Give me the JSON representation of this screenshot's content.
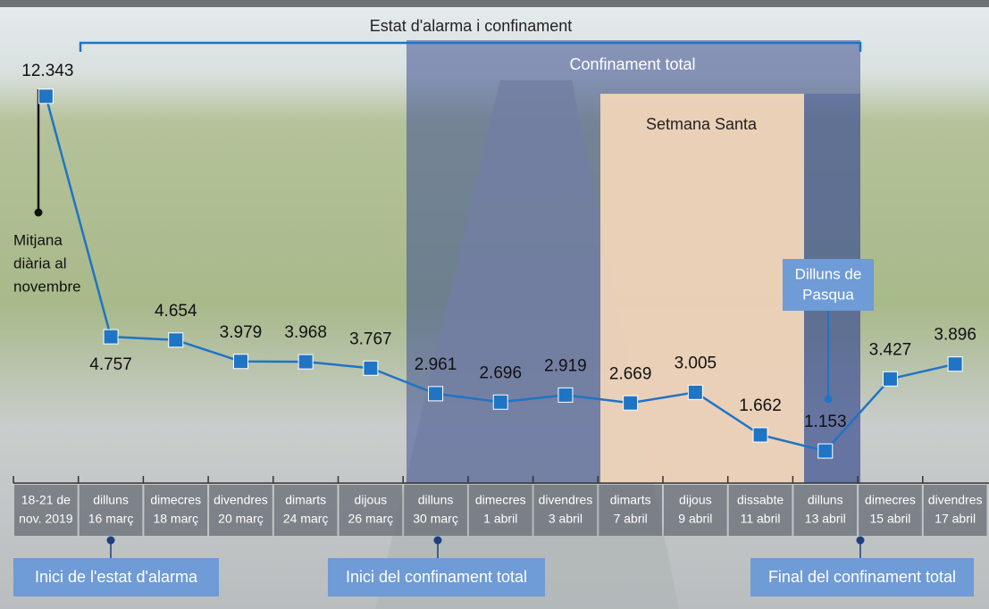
{
  "chart_data": {
    "type": "line",
    "title": "Estat d'alarma i confinament",
    "categories": [
      [
        "18-21 de",
        "nov. 2019"
      ],
      [
        "dilluns",
        "16 març"
      ],
      [
        "dimecres",
        "18 març"
      ],
      [
        "divendres",
        "20 març"
      ],
      [
        "dimarts",
        "24 març"
      ],
      [
        "dijous",
        "26 març"
      ],
      [
        "dilluns",
        "30 març"
      ],
      [
        "dimecres",
        "1 abril"
      ],
      [
        "divendres",
        "3 abril"
      ],
      [
        "dimarts",
        "7 abril"
      ],
      [
        "dijous",
        "9 abril"
      ],
      [
        "dissabte",
        "11 abril"
      ],
      [
        "dilluns",
        "13 abril"
      ],
      [
        "dimecres",
        "15 abril"
      ],
      [
        "divendres",
        "17 abril"
      ]
    ],
    "values": [
      12343,
      4757,
      4654,
      3979,
      3968,
      3767,
      2961,
      2696,
      2919,
      2669,
      3005,
      1662,
      1153,
      3427,
      3896
    ],
    "value_labels": [
      "12.343",
      "4.757",
      "4.654",
      "3.979",
      "3.968",
      "3.767",
      "2.961",
      "2.696",
      "2.919",
      "2.669",
      "3.005",
      "1.662",
      "1.153",
      "3.427",
      "3.896"
    ],
    "color": "#1f74c4",
    "ylim": [
      0,
      14000
    ],
    "annotations": [
      [
        "Confinament total"
      ],
      [
        "Setmana Santa"
      ],
      [
        "Mitjana",
        "diària al",
        "novembre"
      ],
      [
        "Dilluns de",
        "Pasqua"
      ],
      [
        "Inici de l'estat d'alarma"
      ],
      [
        "Inici del confinament total"
      ],
      [
        "Final del confinament total"
      ]
    ]
  }
}
